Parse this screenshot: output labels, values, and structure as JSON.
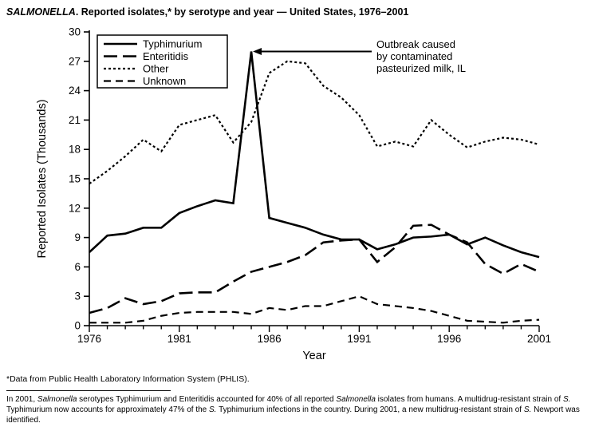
{
  "colors": {
    "ink": "#000000",
    "background": "#ffffff"
  },
  "title": {
    "segments": [
      {
        "text": "SALMONELLA",
        "italic": true
      },
      {
        "text": ". Reported isolates,* by serotype and year — United States, 1976–2001",
        "italic": false
      }
    ]
  },
  "chart_data": {
    "type": "line",
    "x": [
      1976,
      1977,
      1978,
      1979,
      1980,
      1981,
      1982,
      1983,
      1984,
      1985,
      1986,
      1987,
      1988,
      1989,
      1990,
      1991,
      1992,
      1993,
      1994,
      1995,
      1996,
      1997,
      1998,
      1999,
      2000,
      2001
    ],
    "series": [
      {
        "name": "Typhimurium",
        "dash": "solid",
        "values": [
          7.5,
          9.2,
          9.4,
          10.0,
          10.0,
          11.5,
          12.2,
          12.8,
          12.5,
          28.0,
          11.0,
          10.5,
          10.0,
          9.3,
          8.8,
          8.8,
          7.8,
          8.3,
          9.0,
          9.1,
          9.3,
          8.3,
          9.0,
          8.2,
          7.5,
          7.0
        ]
      },
      {
        "name": "Enteritidis",
        "dash": "long-dash",
        "values": [
          1.3,
          1.8,
          2.8,
          2.2,
          2.5,
          3.3,
          3.4,
          3.4,
          4.5,
          5.5,
          6.0,
          6.5,
          7.2,
          8.5,
          8.7,
          8.8,
          6.5,
          8.0,
          10.2,
          10.3,
          9.3,
          8.5,
          6.3,
          5.3,
          6.3,
          5.5
        ]
      },
      {
        "name": "Other",
        "dash": "dotted",
        "values": [
          14.5,
          15.8,
          17.3,
          19.0,
          17.8,
          20.5,
          21.0,
          21.5,
          18.7,
          20.8,
          25.8,
          27.0,
          26.8,
          24.5,
          23.3,
          21.5,
          18.3,
          18.8,
          18.3,
          21.0,
          19.5,
          18.2,
          18.8,
          19.2,
          19.0,
          18.5
        ]
      },
      {
        "name": "Unknown",
        "dash": "medium-dash",
        "values": [
          0.3,
          0.3,
          0.3,
          0.5,
          1.0,
          1.3,
          1.4,
          1.4,
          1.4,
          1.2,
          1.8,
          1.6,
          2.0,
          2.0,
          2.5,
          3.0,
          2.2,
          2.0,
          1.8,
          1.5,
          1.0,
          0.5,
          0.4,
          0.3,
          0.5,
          0.6
        ]
      }
    ],
    "xlabel": "Year",
    "ylabel": "Reported Isolates (Thousands)",
    "ylim": [
      0,
      30
    ],
    "ytick_step": 3,
    "xticks": [
      1976,
      1981,
      1986,
      1991,
      1996,
      2001
    ],
    "grid": false,
    "legend_position": "top-left",
    "annotation": {
      "lines": [
        "Outbreak caused",
        "by contaminated",
        "pasteurized milk, IL"
      ],
      "points_to": {
        "year": 1985,
        "value": 28
      }
    }
  },
  "footnote": "*Data from Public Health Laboratory Information System (PHLIS).",
  "footer": {
    "segments": [
      {
        "text": "In 2001, ",
        "italic": false
      },
      {
        "text": "Salmonella",
        "italic": true
      },
      {
        "text": " serotypes Typhimurium and Enteritidis accounted for 40% of all reported ",
        "italic": false
      },
      {
        "text": "Salmonella",
        "italic": true
      },
      {
        "text": " isolates from humans. A multidrug-resistant strain of ",
        "italic": false
      },
      {
        "text": "S.",
        "italic": true
      },
      {
        "text": " Typhimurium now accounts for approximately 47% of the ",
        "italic": false
      },
      {
        "text": "S.",
        "italic": true
      },
      {
        "text": " Typhimurium infections in the country. During 2001, a new multidrug-resistant strain of ",
        "italic": false
      },
      {
        "text": "S.",
        "italic": true
      },
      {
        "text": " Newport was identified.",
        "italic": false
      }
    ]
  }
}
